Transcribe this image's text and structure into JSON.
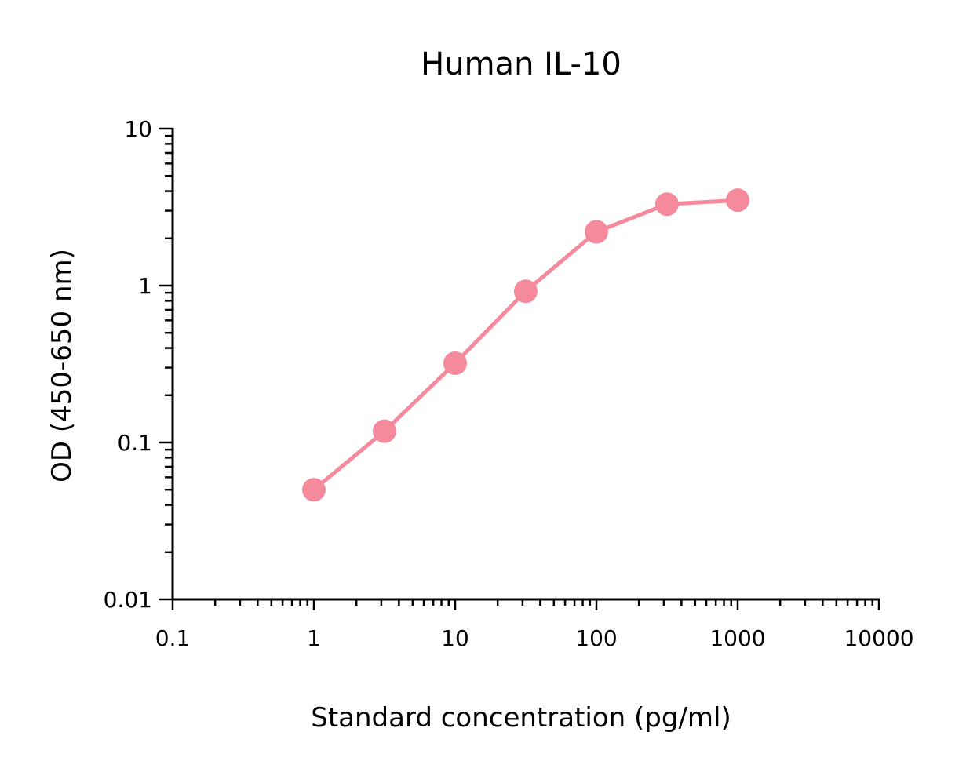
{
  "chart_data": {
    "type": "line",
    "title": "Human IL-10",
    "xlabel": "Standard concentration (pg/ml)",
    "ylabel": "OD (450-650 nm)",
    "x_scale": "log",
    "y_scale": "log",
    "xlim": [
      0.1,
      10000
    ],
    "ylim": [
      0.01,
      10
    ],
    "x_tick_labels": [
      "0.1",
      "1",
      "10",
      "100",
      "1000",
      "10000"
    ],
    "y_tick_labels": [
      "0.01",
      "0.1",
      "1",
      "10"
    ],
    "grid": false,
    "legend": "none",
    "series": [
      {
        "color": "#f48a9c",
        "x": [
          1,
          3.16,
          10,
          31.6,
          100,
          316,
          1000
        ],
        "y": [
          0.05,
          0.118,
          0.32,
          0.92,
          2.2,
          3.3,
          3.5
        ]
      }
    ]
  }
}
